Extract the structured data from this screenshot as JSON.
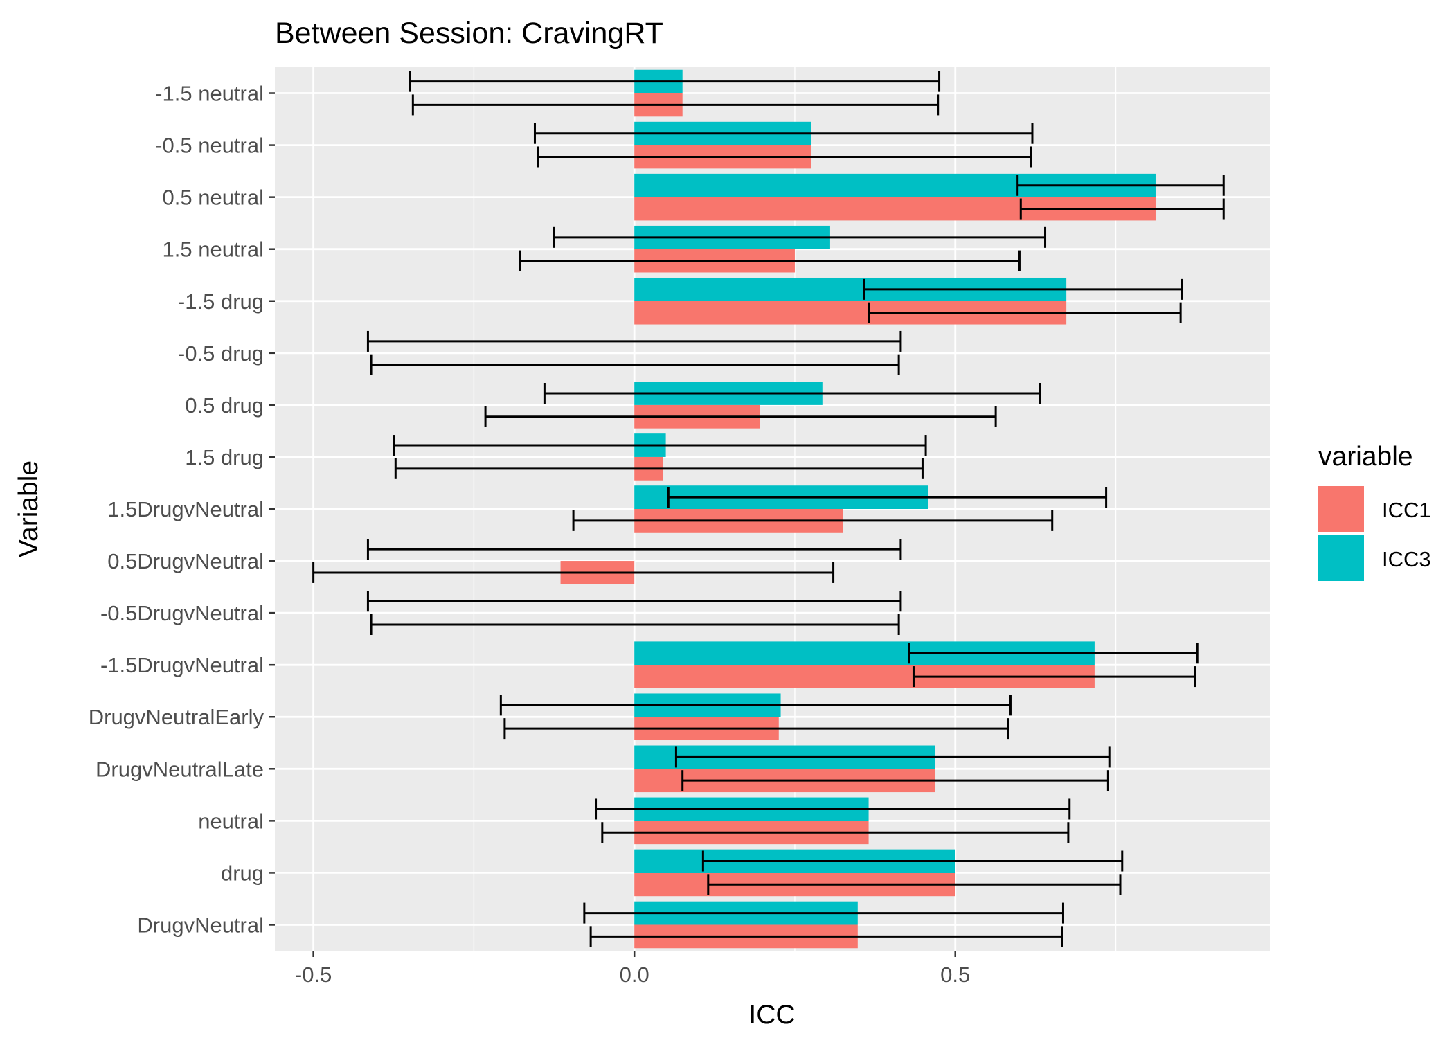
{
  "chart_data": {
    "type": "bar",
    "title": "Between Session: CravingRT",
    "xlabel": "ICC",
    "ylabel": "Variable",
    "xlim": [
      -0.56,
      0.99
    ],
    "x_ticks": [
      -0.5,
      0.0,
      0.5
    ],
    "x_tick_labels": [
      "-0.5",
      "0.0",
      "0.5"
    ],
    "categories": [
      "-1.5 neutral",
      "-0.5 neutral",
      "0.5 neutral",
      "1.5 neutral",
      "-1.5 drug",
      "-0.5 drug",
      "0.5 drug",
      "1.5 drug",
      "1.5DrugvNeutral",
      "0.5DrugvNeutral",
      "-0.5DrugvNeutral",
      "-1.5DrugvNeutral",
      "DrugvNeutralEarly",
      "DrugvNeutralLate",
      "neutral",
      "drug",
      "DrugvNeutral"
    ],
    "legend_title": "variable",
    "legend_position": "right",
    "grid": true,
    "orientation": "horizontal",
    "series": [
      {
        "name": "ICC1",
        "color": "#F8766D",
        "values": [
          0.075,
          0.275,
          0.812,
          0.25,
          0.673,
          0.0,
          0.196,
          0.045,
          0.325,
          -0.115,
          0.0,
          0.717,
          0.225,
          0.468,
          0.365,
          0.5,
          0.348
        ],
        "lower": [
          -0.345,
          -0.15,
          0.602,
          -0.178,
          0.365,
          -0.41,
          -0.232,
          -0.372,
          -0.095,
          -0.5,
          -0.41,
          0.435,
          -0.202,
          0.075,
          -0.05,
          0.115,
          -0.068
        ],
        "upper": [
          0.473,
          0.618,
          0.918,
          0.6,
          0.851,
          0.412,
          0.563,
          0.449,
          0.651,
          0.31,
          0.412,
          0.874,
          0.582,
          0.738,
          0.676,
          0.757,
          0.666
        ]
      },
      {
        "name": "ICC3",
        "color": "#00BFC4",
        "values": [
          0.075,
          0.275,
          0.812,
          0.305,
          0.673,
          0.0,
          0.293,
          0.049,
          0.458,
          0.0,
          0.0,
          0.717,
          0.228,
          0.468,
          0.365,
          0.5,
          0.348
        ],
        "lower": [
          -0.35,
          -0.155,
          0.597,
          -0.125,
          0.358,
          -0.415,
          -0.14,
          -0.375,
          0.053,
          -0.415,
          -0.415,
          0.428,
          -0.208,
          0.065,
          -0.06,
          0.107,
          -0.078
        ],
        "upper": [
          0.475,
          0.62,
          0.918,
          0.64,
          0.853,
          0.415,
          0.632,
          0.454,
          0.735,
          0.415,
          0.415,
          0.877,
          0.586,
          0.74,
          0.678,
          0.76,
          0.668
        ]
      }
    ]
  }
}
